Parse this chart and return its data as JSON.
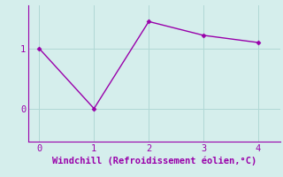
{
  "x": [
    0,
    1,
    2,
    3,
    4
  ],
  "y": [
    1.0,
    0.0,
    1.45,
    1.22,
    1.1
  ],
  "line_color": "#9900aa",
  "marker": "D",
  "marker_size": 2.5,
  "background_color": "#d5eeec",
  "grid_color": "#b0d8d5",
  "xlabel": "Windchill (Refroidissement éolien,°C)",
  "xlabel_color": "#9900aa",
  "xlabel_fontsize": 7.5,
  "ytick_labels": [
    "0",
    "1"
  ],
  "ytick_values": [
    0,
    1
  ],
  "xtick_values": [
    0,
    1,
    2,
    3,
    4
  ],
  "xlim": [
    -0.2,
    4.4
  ],
  "ylim": [
    -0.55,
    1.72
  ],
  "tick_color": "#9900aa",
  "spine_color": "#9900aa",
  "line_width": 1.0,
  "tick_fontsize": 7.5
}
